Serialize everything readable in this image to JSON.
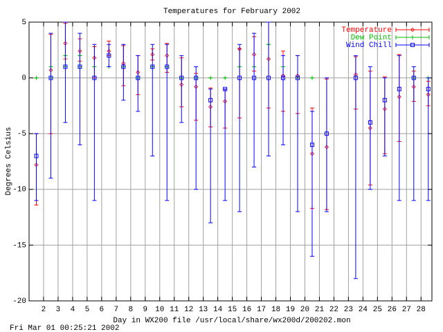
{
  "chart_data": {
    "type": "errorbar",
    "title": "Temperatures for February 2002",
    "x_label": "Day in WX200 file /usr/local/share/wx200d/200202.mon",
    "y_label": "Degrees Celsius",
    "footer": "Fri Mar 01 00:25:21 2002",
    "x": [
      1.5,
      2.5,
      3.5,
      4.5,
      5.5,
      6.5,
      7.5,
      8.5,
      9.5,
      10.5,
      11.5,
      12.5,
      13.5,
      14.5,
      15.5,
      16.5,
      17.5,
      18.5,
      19.5,
      20.5,
      21.5,
      22.5,
      23.5,
      24.5,
      25.5,
      26.5,
      27.5,
      28.5
    ],
    "xlim": [
      1,
      28.75
    ],
    "xticks": [
      2,
      3,
      4,
      5,
      6,
      7,
      8,
      9,
      10,
      11,
      12,
      13,
      14,
      15,
      16,
      17,
      18,
      19,
      20,
      21,
      22,
      23,
      24,
      25,
      26,
      27,
      28
    ],
    "ylim": [
      -20,
      5
    ],
    "yticks": [
      -20,
      -15,
      -10,
      -5,
      0,
      5
    ],
    "grid": true,
    "legend": "top-right",
    "series": [
      {
        "name": "Temperature",
        "color": "#ff0000",
        "marker": "diamond",
        "values": [
          -7.8,
          0.7,
          3.1,
          2.4,
          1.8,
          2.4,
          1.3,
          0.5,
          2.1,
          2,
          -0.6,
          -0.8,
          -2.6,
          -2.1,
          2.6,
          2.1,
          1.7,
          0.2,
          0.2,
          -6.8,
          -6.2,
          null,
          0.3,
          -4.5,
          -2.8,
          -1.7,
          -0.8,
          -1.5
        ],
        "low": [
          -11.4,
          -5,
          1.7,
          1.5,
          0,
          2,
          -0.7,
          -1.5,
          1.6,
          0.5,
          -2.6,
          -3.8,
          -4.4,
          -4.5,
          -3.6,
          0.6,
          -2.7,
          -3,
          -3.2,
          -11.7,
          -11.8,
          null,
          -2.8,
          -9.6,
          -6.8,
          -5.7,
          -2.1,
          -2.5
        ],
        "high": [
          -5,
          3.9,
          4.9,
          3.5,
          2.8,
          3.3,
          2.9,
          2,
          2.6,
          3.1,
          1.8,
          0.4,
          -0.9,
          -1,
          2.6,
          3.7,
          5,
          2.4,
          2,
          -2.7,
          -0.1,
          null,
          1.9,
          0.6,
          0.1,
          2.1,
          0.6,
          -0.3
        ]
      },
      {
        "name": "Dew Point",
        "color": "#00c000",
        "marker": "plus",
        "values": [
          0,
          1,
          2,
          2,
          1,
          1,
          1,
          0,
          1,
          1,
          0,
          0,
          0,
          0,
          1,
          1,
          3,
          1,
          0,
          0,
          null,
          null,
          null,
          null,
          null,
          null,
          0,
          0
        ],
        "low": [
          0,
          0,
          1,
          1,
          1,
          1,
          1,
          0,
          1,
          1,
          0,
          0,
          0,
          0,
          1,
          1,
          3,
          1,
          0,
          0,
          null,
          null,
          null,
          null,
          null,
          null,
          0,
          0
        ],
        "high": [
          0,
          1,
          2,
          2,
          1,
          1,
          1,
          0,
          1,
          1,
          0,
          0,
          0,
          0,
          1,
          1,
          3,
          1,
          0,
          0,
          null,
          null,
          null,
          null,
          null,
          null,
          0,
          0
        ]
      },
      {
        "name": "Wind Chill",
        "color": "#0000ff",
        "marker": "square",
        "values": [
          -7,
          0,
          1,
          1,
          0,
          2,
          1,
          0,
          1,
          1,
          0,
          0,
          -2,
          -1,
          0,
          0,
          0,
          0,
          0,
          -6,
          -5,
          null,
          0,
          -4,
          -2,
          -1,
          0,
          -1
        ],
        "low": [
          -11,
          -9,
          -4,
          -6,
          -11,
          1,
          -2,
          -3,
          -7,
          -11,
          -4,
          -10,
          -13,
          -11,
          -12,
          -8,
          -7,
          -6,
          -12,
          -16,
          -12,
          null,
          -18,
          -10,
          -7,
          -11,
          -11,
          -11
        ],
        "high": [
          -5,
          4,
          5,
          4,
          3,
          3,
          3,
          2,
          3,
          3,
          2,
          1,
          -1,
          -1,
          3,
          4,
          5,
          2,
          2,
          -3,
          0,
          null,
          2,
          1,
          0,
          2,
          1,
          0
        ]
      }
    ]
  }
}
